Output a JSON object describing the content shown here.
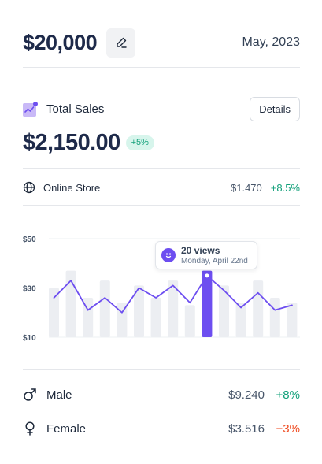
{
  "header": {
    "budget": "$20,000",
    "period": "May, 2023"
  },
  "sales": {
    "title": "Total Sales",
    "details_label": "Details",
    "total": "$2,150.00",
    "change": "+5%"
  },
  "store": {
    "label": "Online Store",
    "amount": "$1.470",
    "change": "+8.5%"
  },
  "tooltip": {
    "title": "20 views",
    "subtitle": "Monday, April 22nd"
  },
  "segments": [
    {
      "label": "Male",
      "amount": "$9.240",
      "change": "+8%",
      "icon": "male-icon"
    },
    {
      "label": "Female",
      "amount": "$3.516",
      "change": "−3%",
      "icon": "female-icon"
    }
  ],
  "colors": {
    "accent": "#6d4ef0",
    "positive": "#12a07a",
    "negative": "#ef4a1f",
    "bar": "#eceef2"
  },
  "chart_data": {
    "type": "bar",
    "title": "",
    "xlabel": "",
    "ylabel": "",
    "y_ticks": [
      "$50",
      "$30",
      "$10"
    ],
    "tick_values": [
      50,
      30,
      10
    ],
    "ylim": [
      10,
      50
    ],
    "grid": true,
    "bars": [
      30,
      37,
      26,
      33,
      24,
      31,
      26,
      33,
      23,
      37,
      31,
      24,
      33,
      26,
      24
    ],
    "highlight_index": 9,
    "line": [
      26,
      33,
      21,
      26,
      20,
      30,
      26,
      31,
      24,
      35,
      29,
      22,
      28,
      21,
      23
    ]
  }
}
